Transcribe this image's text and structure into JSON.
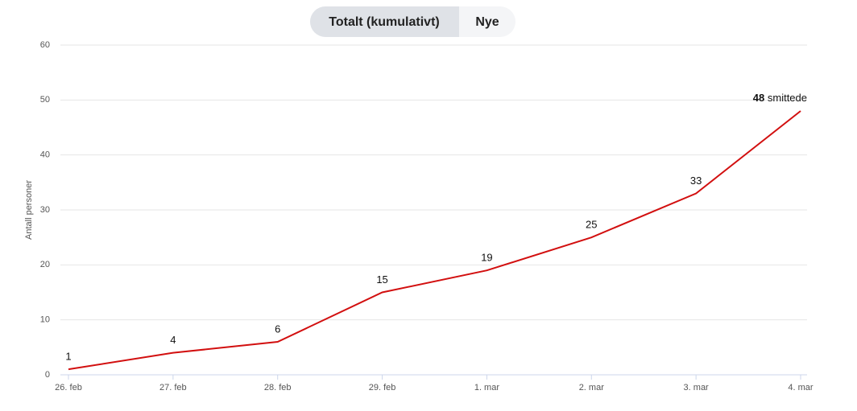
{
  "tabs": [
    "Totalt (kumulativt)",
    "Nye"
  ],
  "chart_data": {
    "type": "line",
    "y_label": "Antall personer",
    "categories": [
      "26. feb",
      "27. feb",
      "28. feb",
      "29. feb",
      "1. mar",
      "2. mar",
      "3. mar",
      "4. mar"
    ],
    "series": [
      {
        "name": null,
        "color": "#d20f0f",
        "values": [
          1,
          4,
          6,
          15,
          19,
          25,
          33,
          48
        ]
      }
    ],
    "annotation": "smittede",
    "ylim": [
      0,
      60
    ],
    "yticks": [
      0,
      10,
      20,
      30,
      40,
      50,
      60
    ],
    "grid": true
  }
}
